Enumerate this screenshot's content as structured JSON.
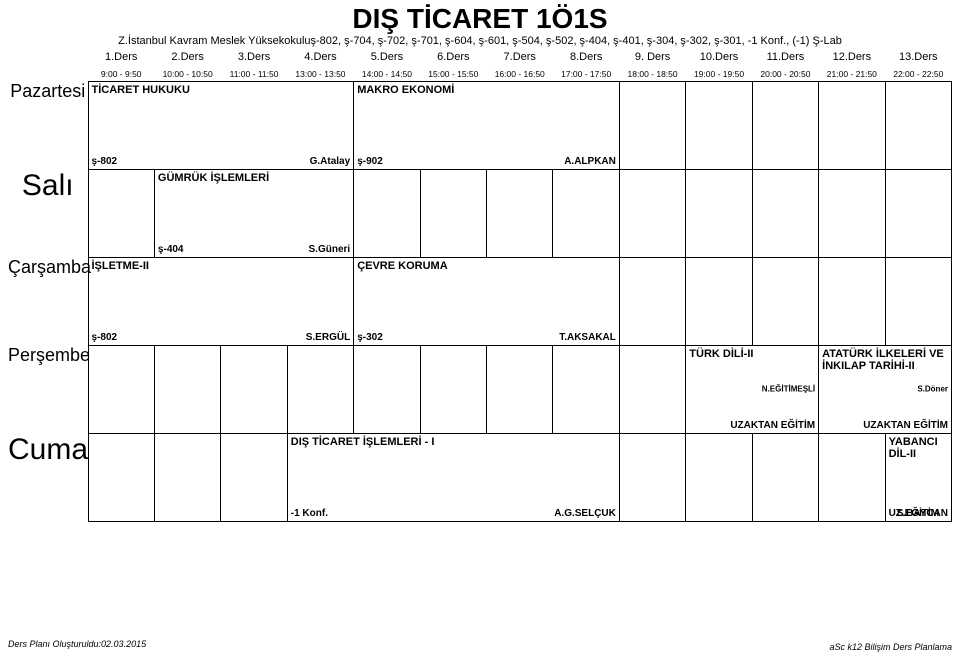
{
  "title": "DIŞ TİCARET 1Ö1S",
  "subtitle": "Z.İstanbul Kavram Meslek Yüksekokuluş-802, ş-704, ş-702, ş-701, ş-604, ş-601, ş-504, ş-502, ş-404, ş-401, ş-304, ş-302, ş-301, -1 Konf., (-1) Ş-Lab",
  "periods": [
    "1.Ders",
    "2.Ders",
    "3.Ders",
    "4.Ders",
    "5.Ders",
    "6.Ders",
    "7.Ders",
    "8.Ders",
    "9. Ders",
    "10.Ders",
    "11.Ders",
    "12.Ders",
    "13.Ders"
  ],
  "times": [
    "9:00 - 9:50",
    "10:00 - 10:50",
    "11:00 - 11:50",
    "13:00 - 13:50",
    "14:00 - 14:50",
    "15:00 - 15:50",
    "16:00 - 16:50",
    "17:00 - 17:50",
    "18:00 - 18:50",
    "19:00 - 19:50",
    "20:00 - 20:50",
    "21:00 - 21:50",
    "22:00 - 22:50"
  ],
  "days": [
    "Pazartesi",
    "Salı",
    "Çarşamba",
    "Perşembe",
    "Cuma"
  ],
  "mon": {
    "c1": {
      "top": "TİCARET HUKUKU",
      "bl": "ş-802",
      "br": "G.Atalay"
    },
    "c2": {
      "top": "MAKRO EKONOMİ",
      "bl": "ş-902",
      "br": "A.ALPKAN"
    }
  },
  "tue": {
    "c1": {
      "top": "GÜMRÜK İŞLEMLERİ",
      "bl": "ş-404",
      "br": "S.Güneri"
    }
  },
  "wed": {
    "c1": {
      "top": "İŞLETME-II",
      "bl": "ş-802",
      "br": "S.ERGÜL"
    },
    "c2": {
      "top": "ÇEVRE KORUMA",
      "bl": "ş-302",
      "br": "T.AKSAKAL"
    }
  },
  "thu": {
    "c1": {
      "top": "TÜRK DİLİ-II",
      "br": "UZAKTAN EĞİTİM",
      "cr": "N.EĞİTİMEŞLİ"
    },
    "c2": {
      "top": "ATATÜRK İLKELERİ VE İNKILAP TARİHİ-II",
      "br": "UZAKTAN EĞİTİM",
      "cr": "S.Döner"
    }
  },
  "fri": {
    "c1": {
      "top": "DIŞ TİCARET İŞLEMLERİ - I",
      "bl": "-1 Konf.",
      "br": "A.G.SELÇUK"
    },
    "c2": {
      "top": "YABANCI DİL-II",
      "bl": "UZ.EĞİTİM",
      "br": "S.BAYCAN"
    }
  },
  "generated": "Ders Planı Oluşturuldu:02.03.2015",
  "brand": "aSc k12 Bilişim Ders Planlama"
}
